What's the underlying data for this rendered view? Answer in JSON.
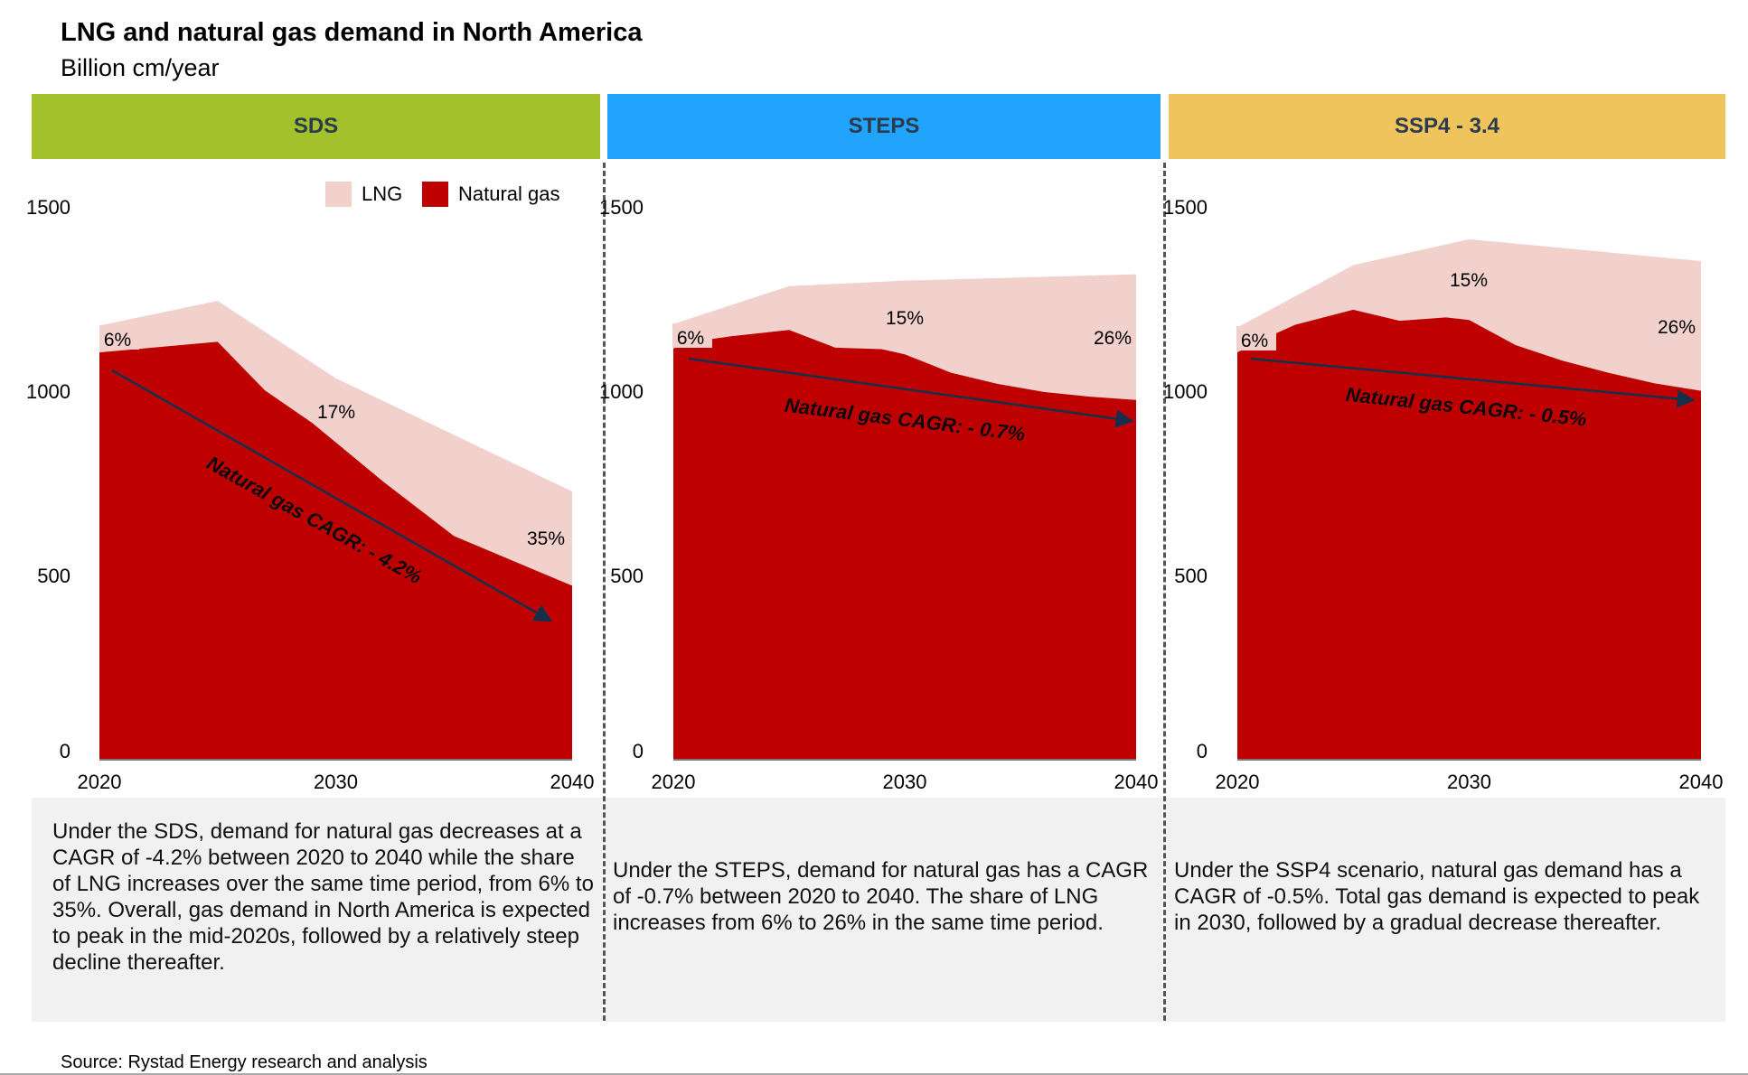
{
  "title": "LNG and natural gas demand in North America",
  "subtitle": "Billion cm/year",
  "source": "Source: Rystad Energy research and analysis",
  "colors": {
    "lng": "#f2d0cb",
    "natural_gas": "#bf0000",
    "arrow": "#14304a",
    "sds_header": "#a2c12a",
    "steps_header": "#22a4fc",
    "ssp4_header": "#efc45c",
    "textbox": "#f1f1f1"
  },
  "legend": [
    {
      "label": "LNG",
      "color": "#f2d0cb"
    },
    {
      "label": "Natural gas",
      "color": "#bf0000"
    }
  ],
  "panels": [
    {
      "name": "SDS",
      "description": "Under the SDS, demand for natural gas decreases at a CAGR of -4.2% between 2020 to 2040 while the share of LNG increases over the same time period, from 6% to 35%. Overall, gas demand in North America is expected to peak in the mid-2020s, followed by a relatively steep decline thereafter."
    },
    {
      "name": "STEPS",
      "description": "Under the STEPS, demand for natural gas has a CAGR of -0.7% between 2020 to 2040. The share of LNG increases from 6% to 26% in the same time period."
    },
    {
      "name": "SSP4 - 3.4",
      "description": "Under the SSP4 scenario, natural gas demand has a CAGR of -0.5%. Total gas demand is expected to peak in 2030, followed by a gradual decrease thereafter."
    }
  ],
  "chart_data": [
    {
      "type": "area",
      "title": "SDS",
      "ylabel": "Billion cm/year",
      "xlim": [
        2020,
        2040
      ],
      "ylim": [
        0,
        1500
      ],
      "yticks": [
        0,
        500,
        1000,
        1500
      ],
      "xticks": [
        2020,
        2030,
        2040
      ],
      "series": [
        {
          "name": "Natural gas",
          "x": [
            2020,
            2025,
            2027,
            2029,
            2032,
            2035,
            2040
          ],
          "values": [
            1105,
            1134,
            1002,
            914,
            755,
            607,
            472
          ]
        },
        {
          "name": "Total (Natural gas + LNG)",
          "x": [
            2020,
            2025,
            2030,
            2040
          ],
          "values": [
            1178,
            1245,
            1035,
            728
          ]
        }
      ],
      "annotations": {
        "lng_share": [
          {
            "x": 2020,
            "label": "6%"
          },
          {
            "x": 2030,
            "label": "17%"
          },
          {
            "x": 2040,
            "label": "35%"
          }
        ],
        "cagr": "Natural gas CAGR: - 4.2%"
      },
      "legend_position": "top-right"
    },
    {
      "type": "area",
      "title": "STEPS",
      "ylabel": "Billion cm/year",
      "xlim": [
        2020,
        2040
      ],
      "ylim": [
        0,
        1500
      ],
      "yticks": [
        0,
        500,
        1000,
        1500
      ],
      "xticks": [
        2020,
        2030,
        2040
      ],
      "series": [
        {
          "name": "Natural gas",
          "x": [
            2020,
            2021.5,
            2022.5,
            2025,
            2027,
            2029,
            2030,
            2032,
            2034,
            2036,
            2038,
            2040
          ],
          "values": [
            1116,
            1140,
            1149,
            1166,
            1118,
            1114,
            1100,
            1050,
            1020,
            998,
            985,
            976
          ]
        },
        {
          "name": "Total (Natural gas + LNG)",
          "x": [
            2020,
            2025,
            2030,
            2040
          ],
          "values": [
            1182,
            1285,
            1300,
            1317
          ]
        }
      ],
      "annotations": {
        "lng_share": [
          {
            "x": 2020,
            "label": "6%"
          },
          {
            "x": 2030,
            "label": "15%"
          },
          {
            "x": 2040,
            "label": "26%"
          }
        ],
        "cagr": "Natural gas CAGR: - 0.7%"
      }
    },
    {
      "type": "area",
      "title": "SSP4 - 3.4",
      "ylabel": "Billion cm/year",
      "xlim": [
        2020,
        2040
      ],
      "ylim": [
        0,
        1500
      ],
      "yticks": [
        0,
        500,
        1000,
        1500
      ],
      "xticks": [
        2020,
        2030,
        2040
      ],
      "series": [
        {
          "name": "Natural gas",
          "x": [
            2020,
            2021,
            2022.5,
            2025,
            2027,
            2029,
            2030,
            2032,
            2034,
            2036,
            2038,
            2040
          ],
          "values": [
            1105,
            1138,
            1180,
            1221,
            1191,
            1200,
            1193,
            1125,
            1083,
            1050,
            1021,
            1001
          ]
        },
        {
          "name": "Total (Natural gas + LNG)",
          "x": [
            2020,
            2025,
            2030,
            2040
          ],
          "values": [
            1173,
            1342,
            1412,
            1353
          ]
        }
      ],
      "annotations": {
        "lng_share": [
          {
            "x": 2020,
            "label": "6%"
          },
          {
            "x": 2030,
            "label": "15%"
          },
          {
            "x": 2040,
            "label": "26%"
          }
        ],
        "cagr": "Natural gas CAGR: - 0.5%"
      }
    }
  ]
}
